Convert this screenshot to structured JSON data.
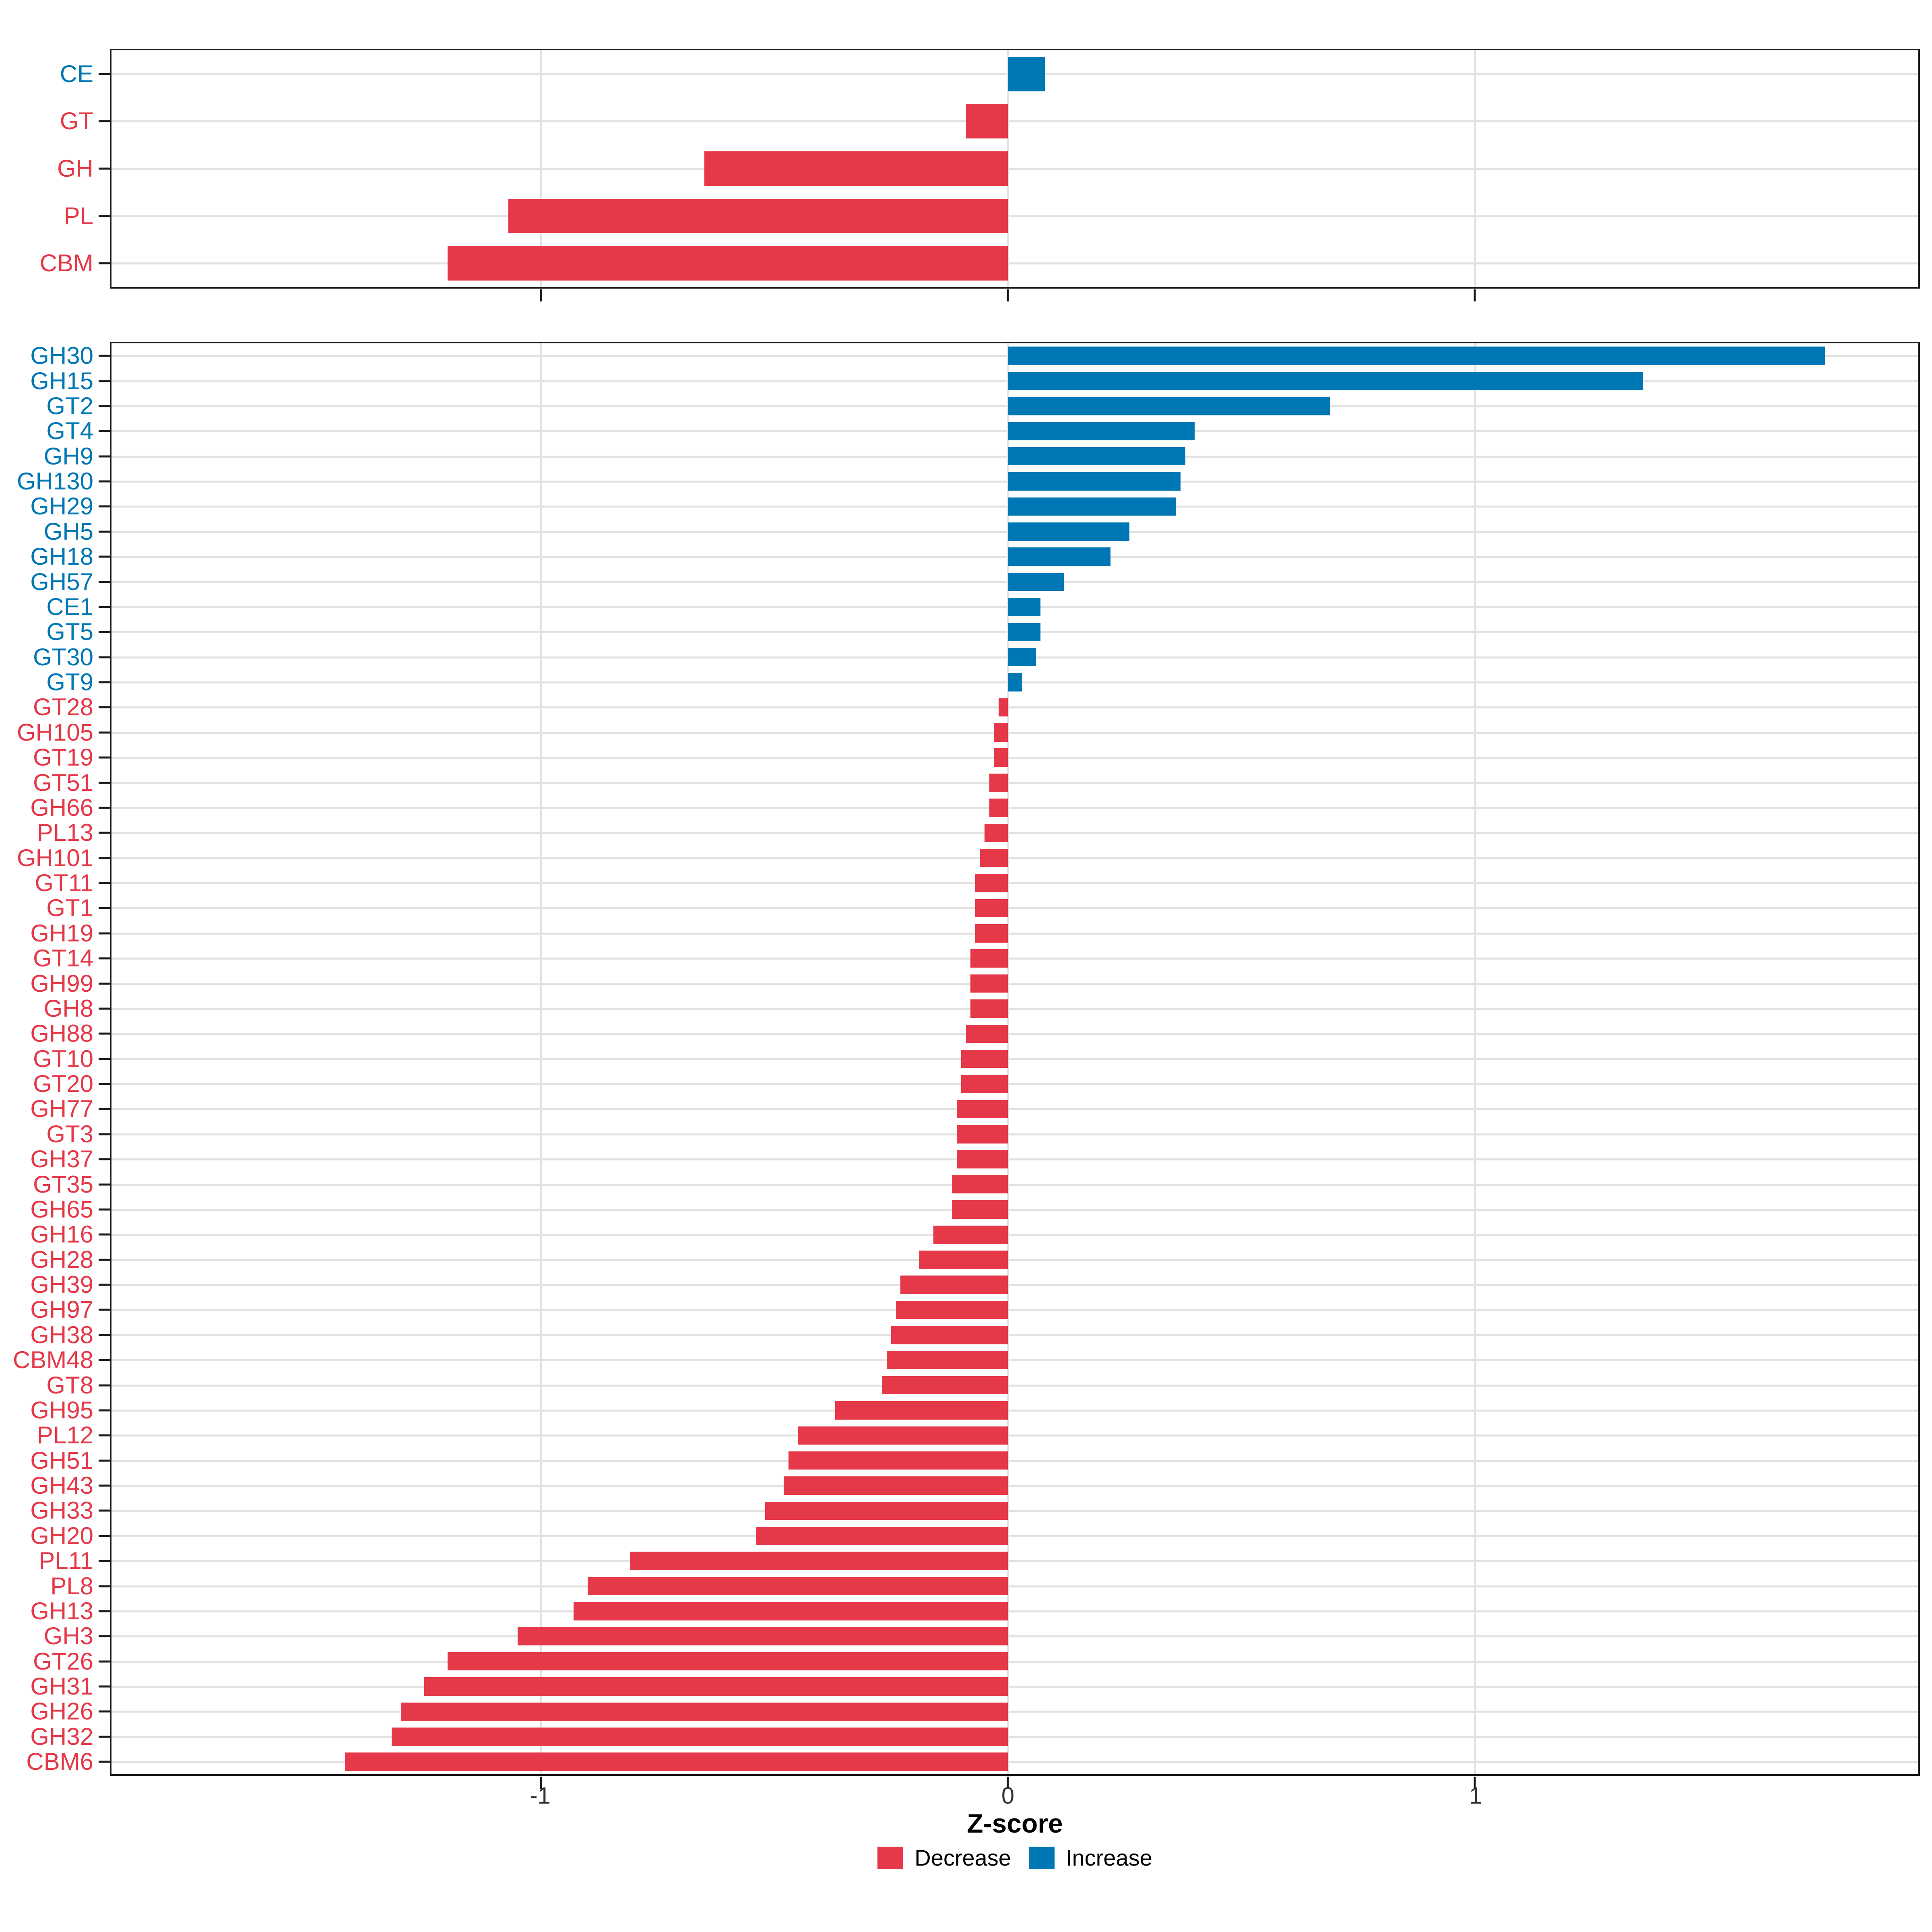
{
  "page": {
    "background": "#FFFFFF"
  },
  "colors": {
    "decrease": "#E53848",
    "increase": "#0077B5",
    "grid": "#E2E2E2",
    "axis": "#1A1A1A",
    "tick_label": "#333333",
    "axis_title": "#000000"
  },
  "axis": {
    "title": "Z-score",
    "ticks": [
      -1,
      0,
      1
    ],
    "tick_labels": [
      "-1",
      "0",
      "1"
    ]
  },
  "legend": {
    "items": [
      {
        "label": "Decrease",
        "direction": "decrease"
      },
      {
        "label": "Increase",
        "direction": "increase"
      }
    ]
  },
  "chart_data": [
    {
      "id": "cazyme-class-panel",
      "type": "bar",
      "orientation": "horizontal",
      "title": "",
      "xlabel": "Z-score",
      "xlim": [
        -1.92,
        1.95
      ],
      "xticks": [
        -1,
        0,
        1
      ],
      "xtick_labels": [
        "-1",
        "0",
        "1"
      ],
      "grid": "major-x-and-category-y",
      "legend_position": "bottom",
      "categories": [
        "CE",
        "GT",
        "GH",
        "PL",
        "CBM"
      ],
      "values": [
        0.08,
        -0.09,
        -0.65,
        -1.07,
        -1.2
      ]
    },
    {
      "id": "cazyme-family-panel",
      "type": "bar",
      "orientation": "horizontal",
      "title": "",
      "xlabel": "Z-score",
      "xlim": [
        -1.92,
        1.95
      ],
      "xticks": [
        -1,
        0,
        1
      ],
      "xtick_labels": [
        "-1",
        "0",
        "1"
      ],
      "grid": "major-x-and-category-y",
      "legend_position": "bottom",
      "categories": [
        "GH30",
        "GH15",
        "GT2",
        "GT4",
        "GH9",
        "GH130",
        "GH29",
        "GH5",
        "GH18",
        "GH57",
        "CE1",
        "GT5",
        "GT30",
        "GT9",
        "GT28",
        "GH105",
        "GT19",
        "GT51",
        "GH66",
        "PL13",
        "GH101",
        "GT11",
        "GT1",
        "GH19",
        "GT14",
        "GH99",
        "GH8",
        "GH88",
        "GT10",
        "GT20",
        "GH77",
        "GT3",
        "GH37",
        "GT35",
        "GH65",
        "GH16",
        "GH28",
        "GH39",
        "GH97",
        "GH38",
        "CBM48",
        "GT8",
        "GH95",
        "PL12",
        "GH51",
        "GH43",
        "GH33",
        "GH20",
        "PL11",
        "PL8",
        "GH13",
        "GH3",
        "GT26",
        "GH31",
        "GH26",
        "GH32",
        "CBM6"
      ],
      "values": [
        1.75,
        1.36,
        0.69,
        0.4,
        0.38,
        0.37,
        0.36,
        0.26,
        0.22,
        0.12,
        0.07,
        0.07,
        0.06,
        0.03,
        -0.02,
        -0.03,
        -0.03,
        -0.04,
        -0.04,
        -0.05,
        -0.06,
        -0.07,
        -0.07,
        -0.07,
        -0.08,
        -0.08,
        -0.08,
        -0.09,
        -0.1,
        -0.1,
        -0.11,
        -0.11,
        -0.11,
        -0.12,
        -0.12,
        -0.16,
        -0.19,
        -0.23,
        -0.24,
        -0.25,
        -0.26,
        -0.27,
        -0.37,
        -0.45,
        -0.47,
        -0.48,
        -0.52,
        -0.54,
        -0.81,
        -0.9,
        -0.93,
        -1.05,
        -1.2,
        -1.25,
        -1.3,
        -1.32,
        -1.42
      ]
    }
  ]
}
